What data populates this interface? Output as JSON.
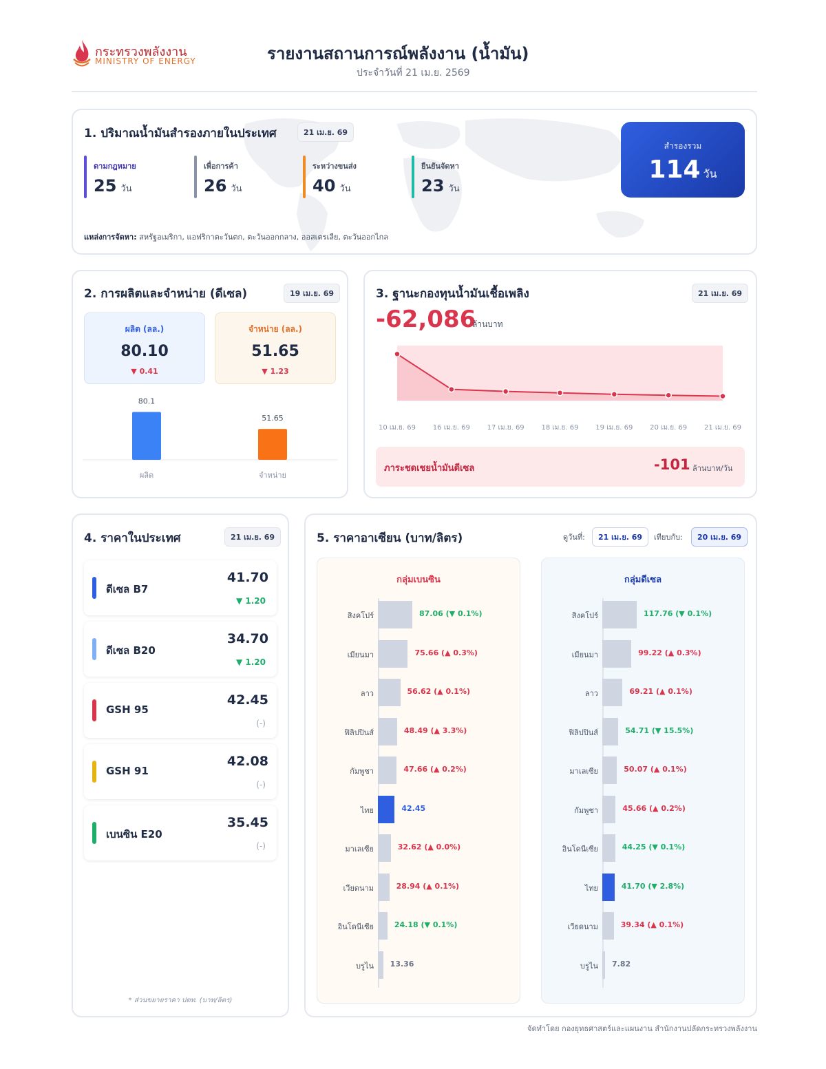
{
  "header": {
    "logo_th": "กระทรวงพลังงาน",
    "logo_en": "MINISTRY OF ENERGY",
    "title": "รายงานสถานการณ์พลังงาน (น้ำมัน)",
    "subtitle": "ประจำวันที่ 21 เม.ย. 2569"
  },
  "section1": {
    "title": "1. ปริมาณน้ำมันสำรองภายในประเทศ",
    "date": "21 เม.ย. 69",
    "items": [
      {
        "label": "ตามกฎหมาย",
        "value": "25",
        "unit": "วัน",
        "color": "#5b4fd8"
      },
      {
        "label": "เพื่อการค้า",
        "value": "26",
        "unit": "วัน",
        "color": "#8a93a5"
      },
      {
        "label": "ระหว่างขนส่ง",
        "value": "40",
        "unit": "วัน",
        "color": "#f08a24"
      },
      {
        "label": "ยืนยันจัดหา",
        "value": "23",
        "unit": "วัน",
        "color": "#22b8a6"
      }
    ],
    "total_label": "สำรองรวม",
    "total_value": "114",
    "total_unit": "วัน",
    "sources_label": "แหล่งการจัดหา:",
    "sources": "สหรัฐอเมริกา, แอฟริกาตะวันตก, ตะวันออกกลาง, ออสเตรเลีย, ตะวันออกไกล"
  },
  "section2": {
    "title": "2. การผลิตและจำหน่าย (ดีเซล)",
    "date": "19 เม.ย. 69",
    "production": {
      "label": "ผลิต (ลล.)",
      "value": "80.10",
      "change": "▼ 0.41"
    },
    "sales": {
      "label": "จำหน่าย (ลล.)",
      "value": "51.65",
      "change": "▼ 1.23"
    },
    "chart_data": {
      "type": "bar",
      "categories": [
        "ผลิต",
        "จำหน่าย"
      ],
      "values": [
        80.1,
        51.65
      ],
      "data_labels": [
        "80.1",
        "51.65"
      ],
      "colors": [
        "#3b82f6",
        "#f97316"
      ],
      "ylim": [
        0,
        100
      ]
    }
  },
  "section3": {
    "title": "3. ฐานะกองทุนน้ำมันเชื้อเพลิง",
    "date": "21 เม.ย. 69",
    "value": "-62,086",
    "unit": "ล้านบาท",
    "chart_data": {
      "type": "area",
      "x": [
        "10 เม.ย. 69",
        "16 เม.ย. 69",
        "17 เม.ย. 69",
        "18 เม.ย. 69",
        "19 เม.ย. 69",
        "20 เม.ย. 69",
        "21 เม.ย. 69"
      ],
      "y": [
        -59100,
        -61600,
        -61750,
        -61850,
        -61950,
        -62020,
        -62086
      ],
      "ylim": [
        -62400,
        -58500
      ],
      "color": "#d9354d"
    },
    "subsidy_label": "ภาระชดเชยน้ำมันดีเซล",
    "subsidy_value": "-101",
    "subsidy_unit": "ล้านบาท/วัน"
  },
  "section4": {
    "title": "4. ราคาในประเทศ",
    "date": "21 เม.ย. 69",
    "items": [
      {
        "name": "ดีเซล B7",
        "price": "41.70",
        "change": "▼ 1.20",
        "color": "#2f5fe0",
        "chg_color": "#1fae6a"
      },
      {
        "name": "ดีเซล B20",
        "price": "34.70",
        "change": "▼ 1.20",
        "color": "#7fb0f5",
        "chg_color": "#1fae6a"
      },
      {
        "name": "GSH 95",
        "price": "42.45",
        "change": "(-)",
        "color": "#d9354d",
        "chg_color": "#9aa2b1"
      },
      {
        "name": "GSH 91",
        "price": "42.08",
        "change": "(-)",
        "color": "#e6b412",
        "chg_color": "#9aa2b1"
      },
      {
        "name": "เบนซิน E20",
        "price": "35.45",
        "change": "(-)",
        "color": "#1fae6a",
        "chg_color": "#9aa2b1"
      }
    ],
    "note": "* ส่วนขยายราคา ปตท. (บาท/ลิตร)"
  },
  "section5": {
    "title": "5. ราคาอาเซียน (บาท/ลิตร)",
    "as_of_label": "ดูวันที่:",
    "as_of_date": "21 เม.ย. 69",
    "compare_label": "เทียบกับ:",
    "compare_date": "20 เม.ย. 69",
    "benzene": {
      "title": "กลุ่มเบนซิน",
      "chart_data": {
        "type": "bar",
        "categories": [
          "สิงคโปร์",
          "เมียนมา",
          "ลาว",
          "ฟิลิปปินส์",
          "กัมพูชา",
          "ไทย",
          "มาเลเซีย",
          "เวียดนาม",
          "อินโดนีเซีย",
          "บรูไน"
        ],
        "values": [
          87.06,
          75.66,
          56.62,
          48.49,
          47.66,
          42.45,
          32.62,
          28.94,
          24.18,
          13.36
        ],
        "labels": [
          "87.06 (▼ 0.1%)",
          "75.66 (▲ 0.3%)",
          "56.62 (▲ 0.1%)",
          "48.49 (▲ 3.3%)",
          "47.66 (▲ 0.2%)",
          "42.45",
          "32.62 (▲ 0.0%)",
          "28.94 (▲ 0.1%)",
          "24.18 (▼ 0.1%)",
          "13.36"
        ],
        "label_colors": [
          "#1fae6a",
          "#d9354d",
          "#d9354d",
          "#d9354d",
          "#d9354d",
          "#2f5fe0",
          "#d9354d",
          "#d9354d",
          "#1fae6a",
          "#6b7385"
        ],
        "highlight_index": 5
      }
    },
    "diesel": {
      "title": "กลุ่มดีเซล",
      "chart_data": {
        "type": "bar",
        "categories": [
          "สิงคโปร์",
          "เมียนมา",
          "ลาว",
          "ฟิลิปปินส์",
          "มาเลเซีย",
          "กัมพูชา",
          "อินโดนีเซีย",
          "ไทย",
          "เวียดนาม",
          "บรูไน"
        ],
        "values": [
          117.76,
          99.22,
          69.21,
          54.71,
          50.07,
          45.66,
          44.25,
          41.7,
          39.34,
          7.82
        ],
        "labels": [
          "117.76 (▼ 0.1%)",
          "99.22 (▲ 0.3%)",
          "69.21 (▲ 0.1%)",
          "54.71 (▼ 15.5%)",
          "50.07 (▲ 0.1%)",
          "45.66 (▲ 0.2%)",
          "44.25 (▼ 0.1%)",
          "41.70 (▼ 2.8%)",
          "39.34 (▲ 0.1%)",
          "7.82"
        ],
        "label_colors": [
          "#1fae6a",
          "#d9354d",
          "#d9354d",
          "#1fae6a",
          "#d9354d",
          "#d9354d",
          "#1fae6a",
          "#1fae6a",
          "#d9354d",
          "#6b7385"
        ],
        "highlight_index": 7
      }
    }
  },
  "footer": "จัดทำโดย กองยุทธศาสตร์และแผนงาน สำนักงานปลัดกระทรวงพลังงาน"
}
